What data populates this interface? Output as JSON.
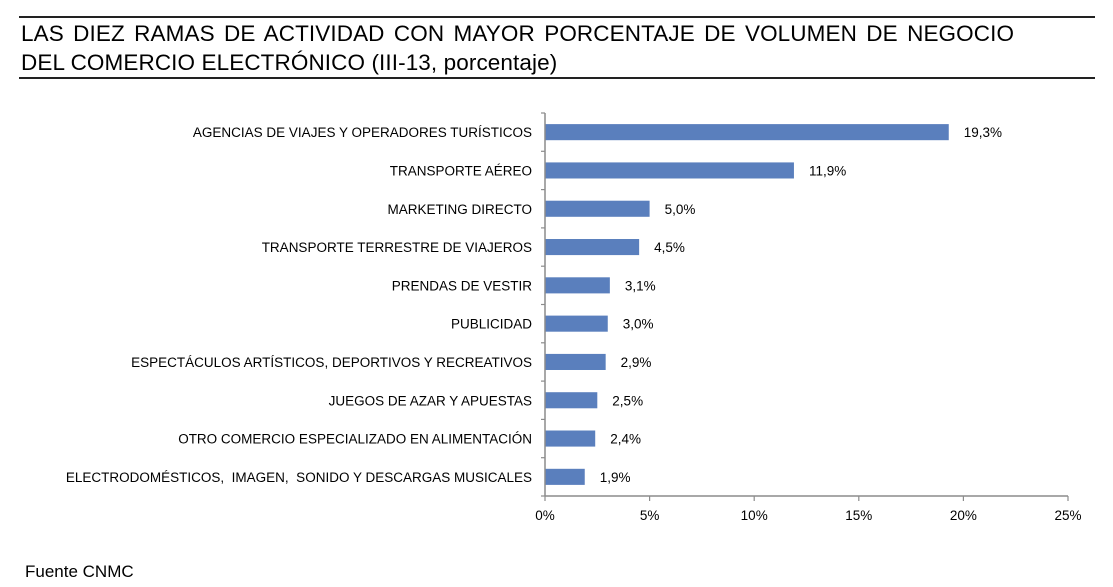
{
  "title_line1": "LAS DIEZ RAMAS DE ACTIVIDAD CON MAYOR PORCENTAJE DE VOLUMEN DE NEGOCIO",
  "title_line2": "DEL COMERCIO ELECTRÓNICO (III-13, porcentaje)",
  "source": "Fuente CNMC",
  "chart_data": {
    "type": "bar",
    "orientation": "horizontal",
    "title": "LAS DIEZ RAMAS DE ACTIVIDAD CON MAYOR PORCENTAJE DE VOLUMEN DE NEGOCIO DEL COMERCIO ELECTRÓNICO (III-13, porcentaje)",
    "xlabel": "",
    "ylabel": "",
    "categories": [
      "AGENCIAS DE VIAJES Y OPERADORES TURÍSTICOS",
      "TRANSPORTE AÉREO",
      "MARKETING DIRECTO",
      "TRANSPORTE TERRESTRE DE VIAJEROS",
      "PRENDAS DE VESTIR",
      "PUBLICIDAD",
      "ESPECTÁCULOS ARTÍSTICOS, DEPORTIVOS Y RECREATIVOS",
      "JUEGOS DE AZAR Y APUESTAS",
      "OTRO COMERCIO ESPECIALIZADO EN ALIMENTACIÓN",
      "ELECTRODOMÉSTICOS,  IMAGEN,  SONIDO Y DESCARGAS MUSICALES"
    ],
    "values": [
      19.3,
      11.9,
      5.0,
      4.5,
      3.1,
      3.0,
      2.9,
      2.5,
      2.4,
      1.9
    ],
    "data_labels": [
      "19,3%",
      "11,9%",
      "5,0%",
      "4,5%",
      "3,1%",
      "3,0%",
      "2,9%",
      "2,5%",
      "2,4%",
      "1,9%"
    ],
    "xlim": [
      0,
      25
    ],
    "xticks": [
      0,
      5,
      10,
      15,
      20,
      25
    ],
    "xtick_labels": [
      "0%",
      "5%",
      "10%",
      "15%",
      "20%",
      "25%"
    ],
    "grid": false,
    "legend": "none",
    "bar_color": "#5a7fbd",
    "axis_color": "#8c8c8c"
  }
}
